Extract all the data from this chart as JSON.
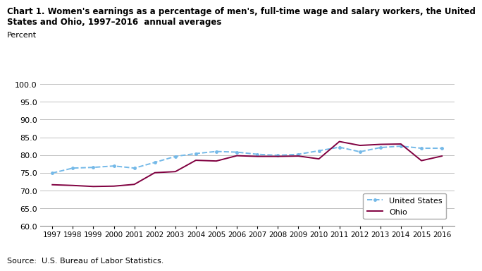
{
  "title_line1": "Chart 1. Women's earnings as a percentage of men's, full-time wage and salary workers, the United",
  "title_line2": "States and Ohio, 1997–2016  annual averages",
  "ylabel": "Percent",
  "source": "Source:  U.S. Bureau of Labor Statistics.",
  "years": [
    1997,
    1998,
    1999,
    2000,
    2001,
    2002,
    2003,
    2004,
    2005,
    2006,
    2007,
    2008,
    2009,
    2010,
    2011,
    2012,
    2013,
    2014,
    2015,
    2016
  ],
  "us_data": [
    74.9,
    76.3,
    76.5,
    76.9,
    76.3,
    77.9,
    79.6,
    80.4,
    81.0,
    80.8,
    80.2,
    79.9,
    80.2,
    81.2,
    82.2,
    80.9,
    82.1,
    82.5,
    81.9,
    81.9
  ],
  "ohio_data": [
    71.6,
    71.4,
    71.1,
    71.2,
    71.7,
    75.0,
    75.3,
    78.5,
    78.3,
    79.8,
    79.6,
    79.6,
    79.7,
    78.9,
    83.8,
    82.7,
    83.0,
    83.1,
    78.4,
    79.7
  ],
  "us_color": "#74b9e8",
  "ohio_color": "#800040",
  "ylim": [
    60.0,
    100.0
  ],
  "yticks": [
    60.0,
    65.0,
    70.0,
    75.0,
    80.0,
    85.0,
    90.0,
    95.0,
    100.0
  ],
  "grid_color": "#c0c0c0",
  "legend_us": "United States",
  "legend_ohio": "Ohio"
}
